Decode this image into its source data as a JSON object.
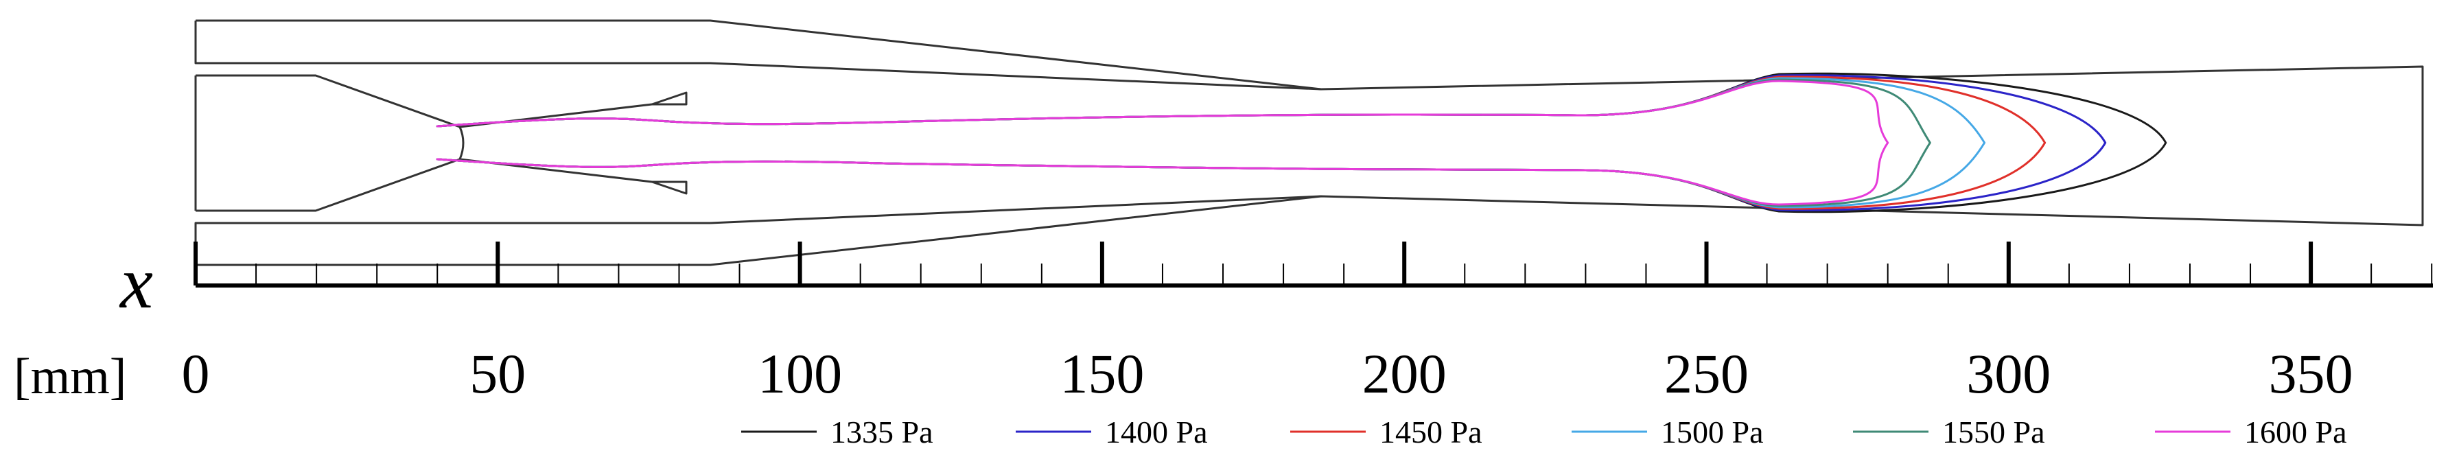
{
  "chart_data": {
    "type": "line",
    "xlabel": "x",
    "xunit": "[mm]",
    "xlim": [
      0,
      370
    ],
    "major_ticks": [
      0,
      50,
      100,
      150,
      200,
      250,
      300,
      350
    ],
    "tick_labels": [
      "0",
      "50",
      "100",
      "150",
      "200",
      "250",
      "300",
      "350"
    ],
    "legend_placement": "bottom",
    "series": [
      {
        "name": "1335 Pa",
        "color": "#1a1a1a",
        "tip_x": 326
      },
      {
        "name": "1400 Pa",
        "color": "#2b24c8",
        "tip_x": 316
      },
      {
        "name": "1450 Pa",
        "color": "#e0302a",
        "tip_x": 306
      },
      {
        "name": "1500 Pa",
        "color": "#45a8e6",
        "tip_x": 296
      },
      {
        "name": "1550 Pa",
        "color": "#3f8a76",
        "tip_x": 287
      },
      {
        "name": "1600 Pa",
        "color": "#e63bd9",
        "tip_x": 280
      }
    ]
  }
}
